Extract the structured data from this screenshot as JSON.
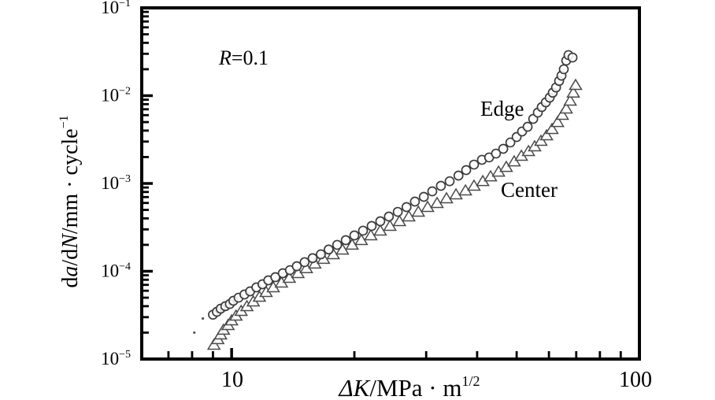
{
  "chart_data": {
    "type": "scatter",
    "title": "",
    "annotation": {
      "prefix": "R",
      "text": "=0.1"
    },
    "x_axis": {
      "label_main": "ΔK",
      "label_rest": "/MPa · m",
      "label_sup": "1/2",
      "scale": "log",
      "range": [
        6.02,
        100
      ],
      "major_ticks": [
        {
          "label": "10",
          "value": 10
        },
        {
          "label": "100",
          "value": 100
        }
      ],
      "minor_ticks": [
        7,
        8,
        9,
        20,
        30,
        40,
        50,
        60,
        70,
        80,
        90
      ]
    },
    "y_axis": {
      "label_p1": "d",
      "label_p2": "a",
      "label_p3": "/d",
      "label_p4": "N",
      "label_p5": "/mm · cycle",
      "label_sup": "−1",
      "scale": "log",
      "range": [
        1e-05,
        0.1
      ],
      "major_ticks": [
        {
          "mantissa": "10",
          "exponent": "−1",
          "value": 0.1
        },
        {
          "mantissa": "10",
          "exponent": "−2",
          "value": 0.01
        },
        {
          "mantissa": "10",
          "exponent": "−3",
          "value": 0.001
        },
        {
          "mantissa": "10",
          "exponent": "−4",
          "value": 0.0001
        },
        {
          "mantissa": "10",
          "exponent": "−5",
          "value": 1e-05
        }
      ],
      "minor_ticks": [
        2e-05,
        3e-05,
        4e-05,
        5e-05,
        6e-05,
        7e-05,
        8e-05,
        9e-05,
        0.0002,
        0.0003,
        0.0004,
        0.0005,
        0.0006,
        0.0007,
        0.0008,
        0.0009,
        0.002,
        0.003,
        0.004,
        0.005,
        0.006,
        0.007,
        0.008,
        0.009,
        0.02,
        0.03,
        0.04,
        0.05,
        0.06,
        0.07,
        0.08,
        0.09
      ],
      "grid": false
    },
    "series": [
      {
        "name": "Edge",
        "marker": "circle",
        "color": "#3a3a3a",
        "points": [
          [
            9.0,
            3.2e-05
          ],
          [
            9.2,
            3.45e-05
          ],
          [
            9.4,
            3.75e-05
          ],
          [
            9.65,
            4e-05
          ],
          [
            9.9,
            4.24e-05
          ],
          [
            10.1,
            4.61e-05
          ],
          [
            10.4,
            5e-05
          ],
          [
            10.75,
            5.44e-05
          ],
          [
            11.1,
            5.91e-05
          ],
          [
            11.5,
            6.55e-05
          ],
          [
            11.9,
            7.11e-05
          ],
          [
            12.3,
            7.89e-05
          ],
          [
            12.8,
            8.56e-05
          ],
          [
            13.35,
            9.5e-05
          ],
          [
            13.9,
            0.000103
          ],
          [
            14.45,
            0.000114
          ],
          [
            15.1,
            0.000127
          ],
          [
            15.8,
            0.000141
          ],
          [
            16.55,
            0.000156
          ],
          [
            17.3,
            0.000177
          ],
          [
            18.15,
            0.0002
          ],
          [
            19.05,
            0.000226
          ],
          [
            20.0,
            0.000256
          ],
          [
            21.0,
            0.00029
          ],
          [
            22.05,
            0.000328
          ],
          [
            23.15,
            0.000371
          ],
          [
            24.3,
            0.00042
          ],
          [
            25.55,
            0.000475
          ],
          [
            26.85,
            0.000538
          ],
          [
            28.15,
            0.000622
          ],
          [
            29.6,
            0.000704
          ],
          [
            31.05,
            0.000813
          ],
          [
            32.6,
            0.00094
          ],
          [
            34.25,
            0.00106
          ],
          [
            36.0,
            0.00123
          ],
          [
            37.6,
            0.00142
          ],
          [
            39.3,
            0.00164
          ],
          [
            41.1,
            0.00186
          ],
          [
            42.8,
            0.00198
          ],
          [
            44.5,
            0.00219
          ],
          [
            46.35,
            0.00248
          ],
          [
            48.25,
            0.00293
          ],
          [
            50.0,
            0.00338
          ],
          [
            51.55,
            0.00391
          ],
          [
            53.2,
            0.00442
          ],
          [
            54.9,
            0.00544
          ],
          [
            56.35,
            0.00641
          ],
          [
            57.6,
            0.00741
          ],
          [
            58.95,
            0.00839
          ],
          [
            60.25,
            0.0095
          ],
          [
            61.3,
            0.0108
          ],
          [
            62.45,
            0.0124
          ],
          [
            63.55,
            0.0147
          ],
          [
            64.4,
            0.0169
          ],
          [
            65.25,
            0.02
          ],
          [
            66.15,
            0.0251
          ],
          [
            67.0,
            0.029
          ],
          [
            68.55,
            0.0272
          ]
        ]
      },
      {
        "name": "Center",
        "marker": "triangle",
        "color": "#4a4a4a",
        "points": [
          [
            9.05,
            1.45e-05
          ],
          [
            9.25,
            1.68e-05
          ],
          [
            9.4,
            1.9e-05
          ],
          [
            9.55,
            2.15e-05
          ],
          [
            9.8,
            2.43e-05
          ],
          [
            10.0,
            2.75e-05
          ],
          [
            10.25,
            3.11e-05
          ],
          [
            10.55,
            3.52e-05
          ],
          [
            10.9,
            3.99e-05
          ],
          [
            11.3,
            4.52e-05
          ],
          [
            11.7,
            5.11e-05
          ],
          [
            12.15,
            5.78e-05
          ],
          [
            12.65,
            6.55e-05
          ],
          [
            13.25,
            7.41e-05
          ],
          [
            13.85,
            8.39e-05
          ],
          [
            14.55,
            9.5e-05
          ],
          [
            15.25,
            0.000108
          ],
          [
            16.0,
            0.000122
          ],
          [
            16.8,
            0.000138
          ],
          [
            17.75,
            0.000156
          ],
          [
            18.7,
            0.000176
          ],
          [
            19.75,
            0.0002
          ],
          [
            20.8,
            0.000226
          ],
          [
            21.95,
            0.000256
          ],
          [
            23.15,
            0.00029
          ],
          [
            24.45,
            0.000328
          ],
          [
            25.8,
            0.000371
          ],
          [
            27.2,
            0.00042
          ],
          [
            28.7,
            0.000475
          ],
          [
            30.25,
            0.000538
          ],
          [
            31.9,
            0.000597
          ],
          [
            33.65,
            0.000676
          ],
          [
            35.5,
            0.000749
          ],
          [
            37.45,
            0.00083
          ],
          [
            39.3,
            0.00094
          ],
          [
            41.3,
            0.00106
          ],
          [
            43.15,
            0.0012
          ],
          [
            45.15,
            0.00136
          ],
          [
            47.15,
            0.00154
          ],
          [
            49.3,
            0.00178
          ],
          [
            51.35,
            0.00206
          ],
          [
            53.45,
            0.00233
          ],
          [
            55.35,
            0.00264
          ],
          [
            57.35,
            0.00305
          ],
          [
            59.2,
            0.00352
          ],
          [
            61.05,
            0.00416
          ],
          [
            63.0,
            0.005
          ],
          [
            64.7,
            0.00603
          ],
          [
            66.15,
            0.00711
          ],
          [
            67.65,
            0.00874
          ],
          [
            68.85,
            0.0108
          ],
          [
            69.75,
            0.0132
          ]
        ]
      }
    ],
    "stray_marks": [
      [
        8.1,
        2e-05
      ],
      [
        8.5,
        2.9e-05
      ]
    ],
    "legend_position": "inline-annotations"
  }
}
